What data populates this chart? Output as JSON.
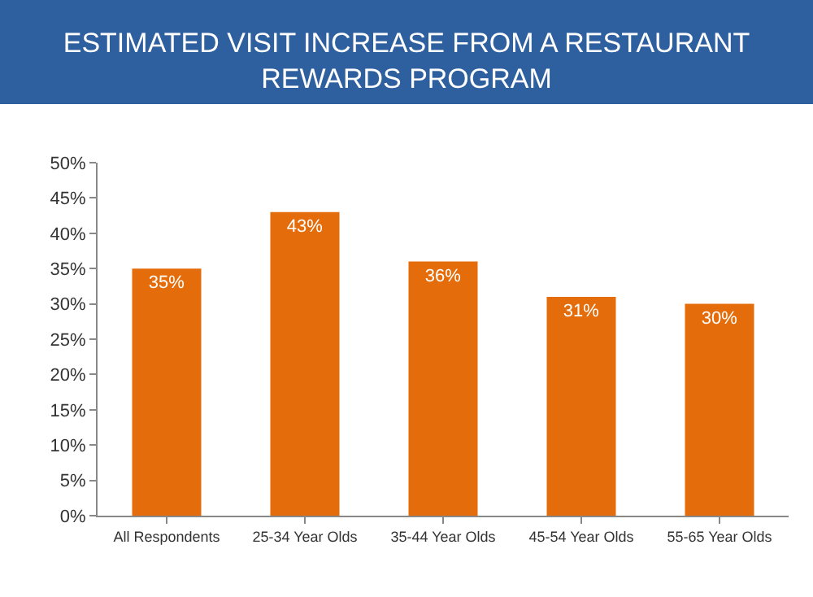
{
  "chart_data": {
    "type": "bar",
    "title": "ESTIMATED VISIT INCREASE FROM A RESTAURANT REWARDS PROGRAM",
    "categories": [
      "All Respondents",
      "25-34 Year Olds",
      "35-44 Year Olds",
      "45-54 Year Olds",
      "55-65 Year Olds"
    ],
    "values": [
      35,
      43,
      36,
      31,
      30
    ],
    "value_labels": [
      "35%",
      "43%",
      "36%",
      "31%",
      "30%"
    ],
    "color": "#e46c0a",
    "ylim": [
      0,
      50
    ],
    "yticks": [
      {
        "value": 0,
        "label": "0%"
      },
      {
        "value": 5,
        "label": "5%"
      },
      {
        "value": 10,
        "label": "10%"
      },
      {
        "value": 15,
        "label": "15%"
      },
      {
        "value": 20,
        "label": "20%"
      },
      {
        "value": 25,
        "label": "25%"
      },
      {
        "value": 30,
        "label": "30%"
      },
      {
        "value": 35,
        "label": "35%"
      },
      {
        "value": 40,
        "label": "40%"
      },
      {
        "value": 45,
        "label": "45%"
      },
      {
        "value": 50,
        "label": "50%"
      }
    ],
    "legend": false
  }
}
